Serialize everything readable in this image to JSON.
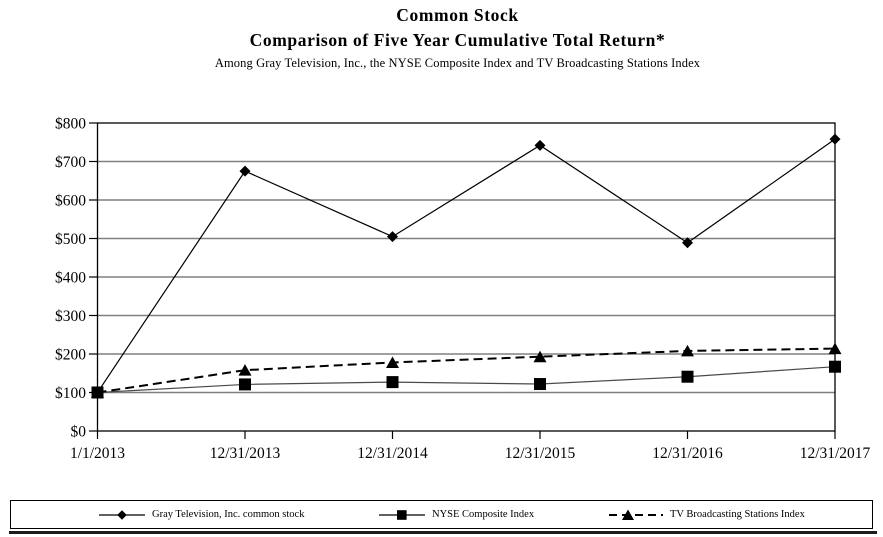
{
  "title": {
    "line1": "Common Stock",
    "line2": "Comparison of Five Year Cumulative Total Return*",
    "line3": "Among Gray Television, Inc., the NYSE Composite Index and TV Broadcasting Stations Index"
  },
  "chart_data": {
    "type": "line",
    "categories": [
      "1/1/2013",
      "12/31/2013",
      "12/31/2014",
      "12/31/2015",
      "12/31/2016",
      "12/31/2017"
    ],
    "series": [
      {
        "name": "Gray Television, Inc. common stock",
        "values": [
          100,
          675,
          505,
          742,
          489,
          758
        ],
        "marker": "diamond",
        "line_style": "solid",
        "color": "#000000"
      },
      {
        "name": "NYSE Composite Index",
        "values": [
          100,
          121,
          127,
          122,
          141,
          167
        ],
        "marker": "square",
        "line_style": "solid",
        "color": "#4a4a4a"
      },
      {
        "name": "TV Broadcasting Stations Index",
        "values": [
          100,
          158,
          178,
          193,
          208,
          214
        ],
        "marker": "triangle",
        "line_style": "dashed",
        "color": "#000000"
      }
    ],
    "ylim": [
      0,
      800
    ],
    "y_tick_values": [
      0,
      100,
      200,
      300,
      400,
      500,
      600,
      700,
      800
    ],
    "y_tick_labels": [
      "$0",
      "$100",
      "$200",
      "$300",
      "$400",
      "$500",
      "$600",
      "$700",
      "$800"
    ],
    "xlabel": "",
    "ylabel": "",
    "grid": "horizontal gridlines on",
    "gridline_color": "#808080",
    "axis_color": "#000000",
    "legend_position": "bottom"
  },
  "legend": {
    "items": [
      {
        "label": "Gray Television, Inc. common stock",
        "marker": "diamond-icon"
      },
      {
        "label": "NYSE Composite Index",
        "marker": "square-icon"
      },
      {
        "label": "TV Broadcasting Stations Index",
        "marker": "triangle-icon"
      }
    ]
  }
}
